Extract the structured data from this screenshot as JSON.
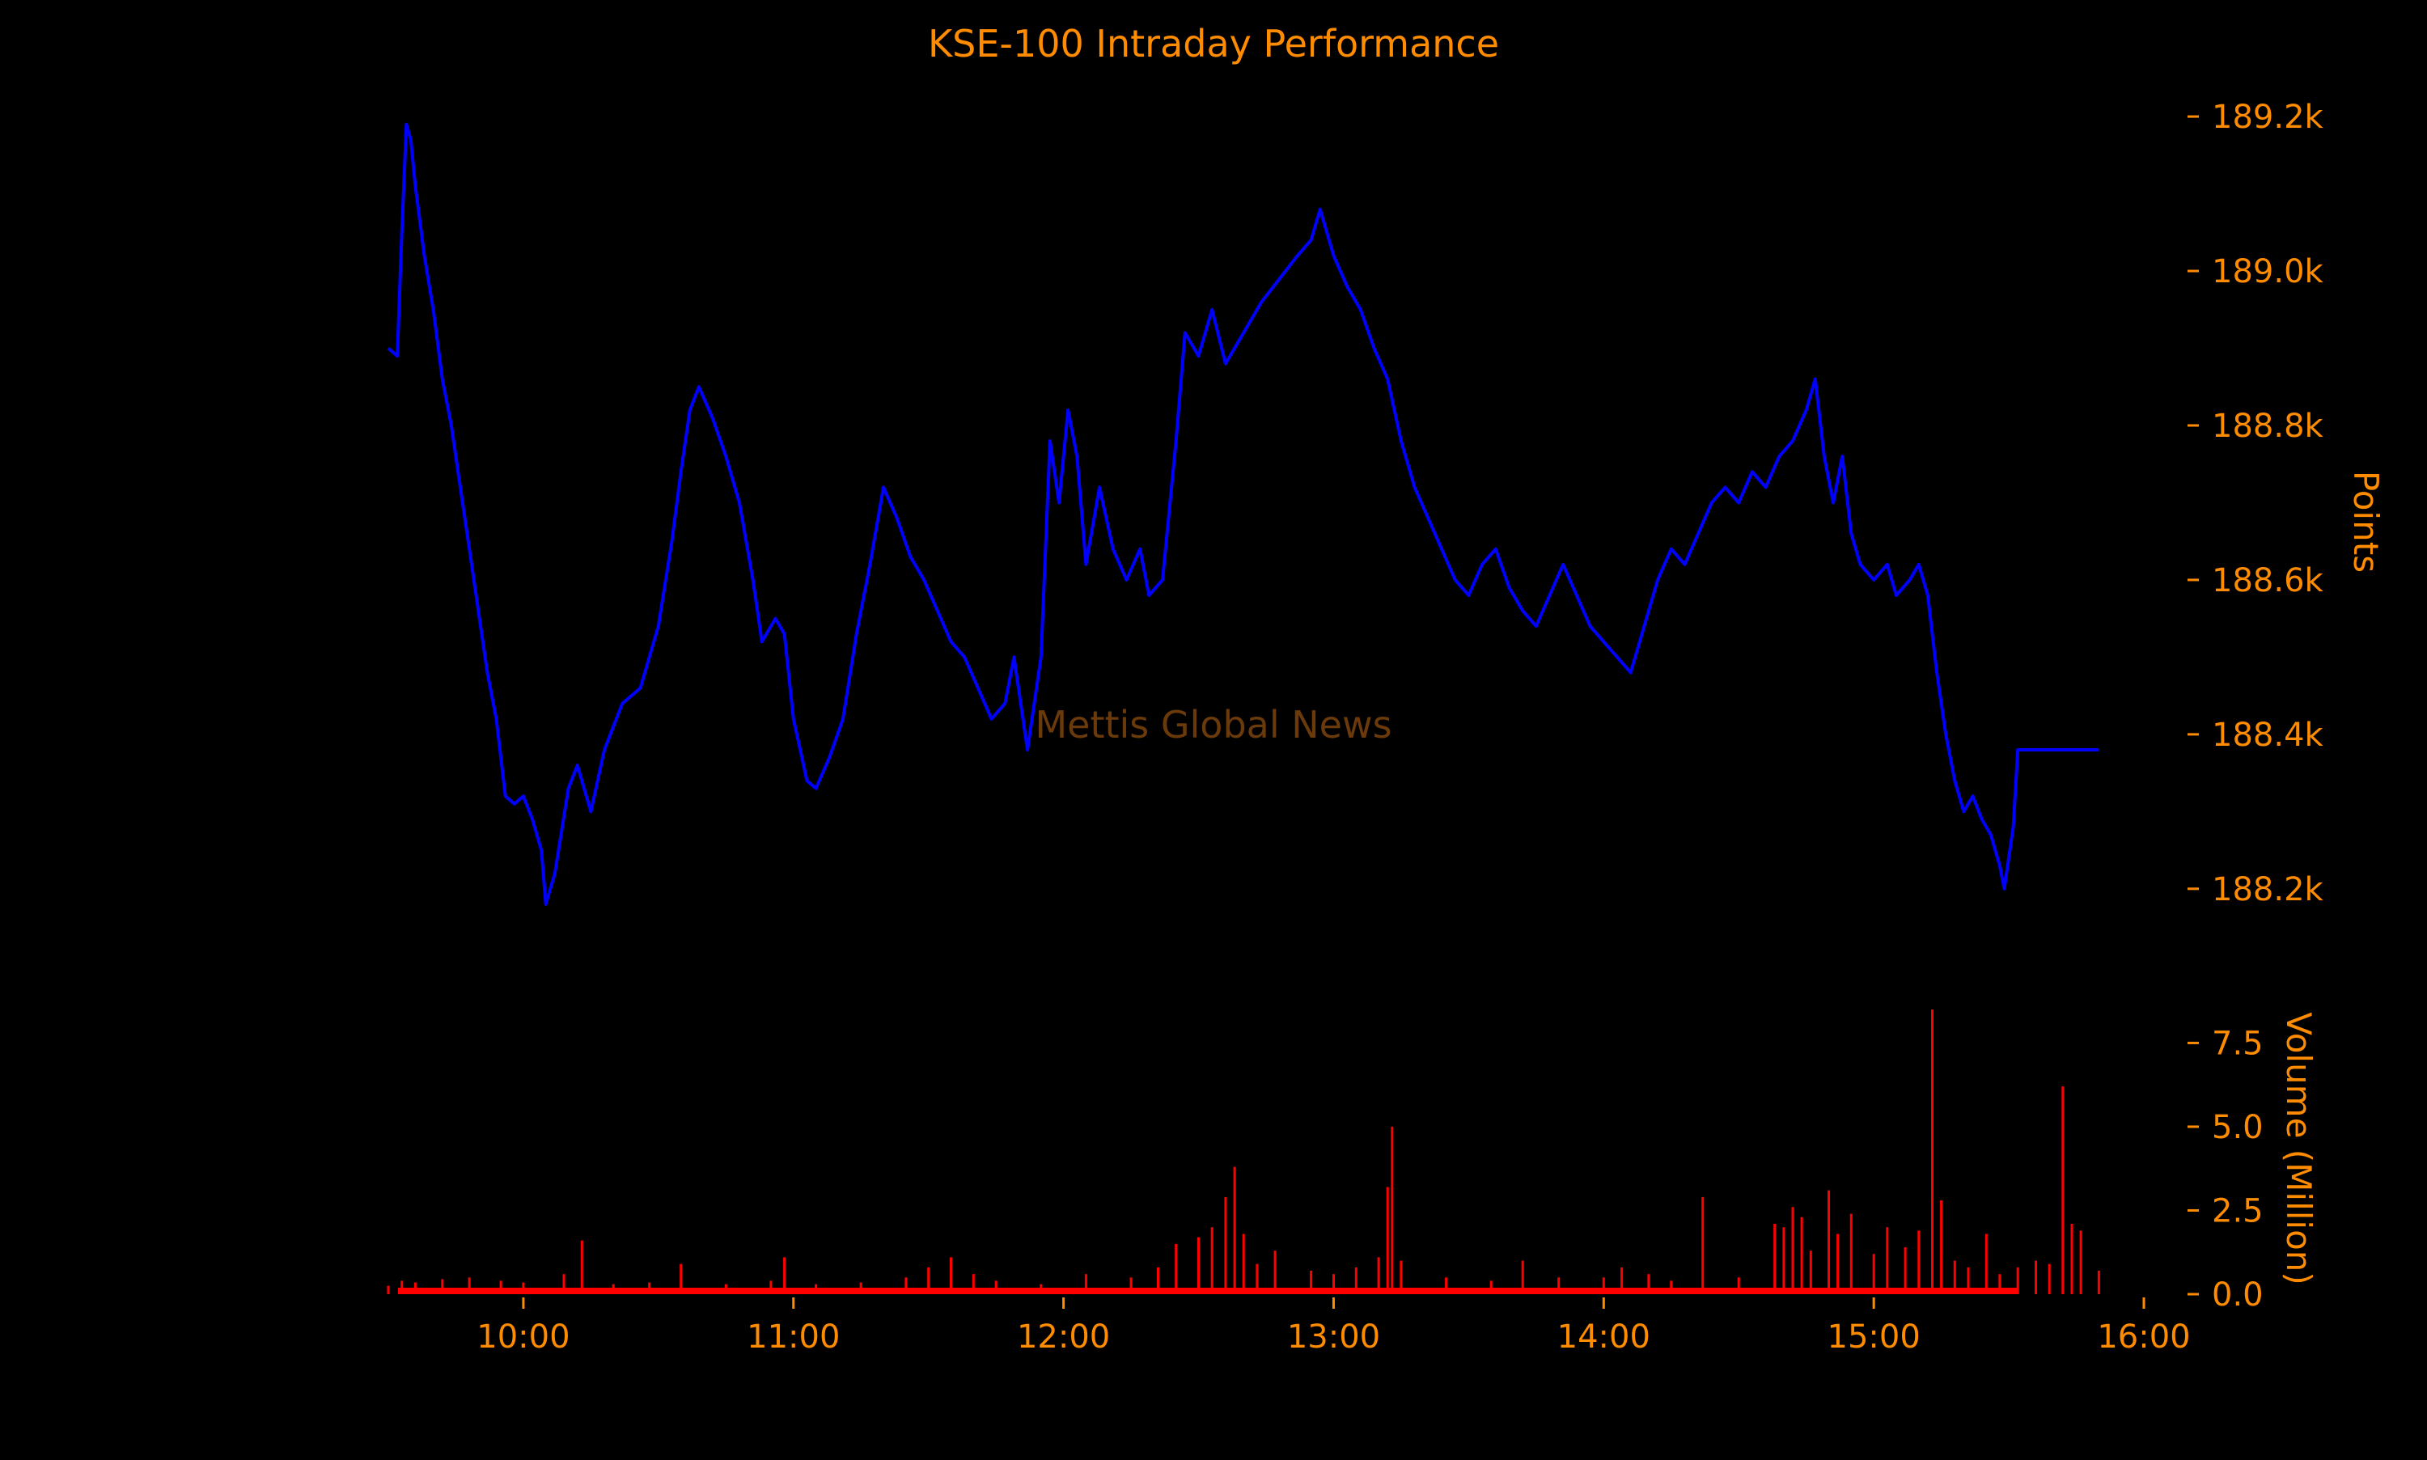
{
  "colors": {
    "background": "#000000",
    "text": "#FF8C00",
    "price_line": "#0000FF",
    "volume_bars": "#FF0000",
    "watermark": "#6B3A0A"
  },
  "chart_data": {
    "type": "line",
    "title": "KSE-100 Intraday Performance",
    "watermark": "Mettis Global News",
    "x_axis": {
      "type": "time",
      "range": [
        "09:30",
        "16:00"
      ],
      "tick_labels": [
        "10:00",
        "11:00",
        "12:00",
        "13:00",
        "14:00",
        "15:00",
        "16:00"
      ]
    },
    "price_panel": {
      "ylabel": "Points",
      "ylim": [
        188160,
        189220
      ],
      "tick_values": [
        188200,
        188400,
        188600,
        188800,
        189000,
        189200
      ],
      "tick_labels": [
        "188.2k",
        "188.4k",
        "188.6k",
        "188.8k",
        "189.0k",
        "189.2k"
      ],
      "series": [
        {
          "color": "#0000FF",
          "points": [
            [
              "09:30",
              188900
            ],
            [
              "09:32",
              188890
            ],
            [
              "09:33",
              189050
            ],
            [
              "09:34",
              189190
            ],
            [
              "09:35",
              189170
            ],
            [
              "09:36",
              189110
            ],
            [
              "09:38",
              189020
            ],
            [
              "09:40",
              188950
            ],
            [
              "09:42",
              188860
            ],
            [
              "09:44",
              188800
            ],
            [
              "09:46",
              188720
            ],
            [
              "09:48",
              188640
            ],
            [
              "09:50",
              188560
            ],
            [
              "09:52",
              188480
            ],
            [
              "09:54",
              188420
            ],
            [
              "09:56",
              188320
            ],
            [
              "09:58",
              188310
            ],
            [
              "10:00",
              188320
            ],
            [
              "10:02",
              188290
            ],
            [
              "10:04",
              188250
            ],
            [
              "10:05",
              188180
            ],
            [
              "10:07",
              188220
            ],
            [
              "10:10",
              188330
            ],
            [
              "10:12",
              188360
            ],
            [
              "10:15",
              188300
            ],
            [
              "10:18",
              188380
            ],
            [
              "10:22",
              188440
            ],
            [
              "10:26",
              188460
            ],
            [
              "10:30",
              188540
            ],
            [
              "10:33",
              188650
            ],
            [
              "10:35",
              188740
            ],
            [
              "10:37",
              188820
            ],
            [
              "10:39",
              188850
            ],
            [
              "10:42",
              188810
            ],
            [
              "10:45",
              188760
            ],
            [
              "10:48",
              188700
            ],
            [
              "10:51",
              188600
            ],
            [
              "10:53",
              188520
            ],
            [
              "10:56",
              188550
            ],
            [
              "10:58",
              188530
            ],
            [
              "11:00",
              188420
            ],
            [
              "11:03",
              188340
            ],
            [
              "11:05",
              188330
            ],
            [
              "11:08",
              188370
            ],
            [
              "11:11",
              188420
            ],
            [
              "11:14",
              188530
            ],
            [
              "11:17",
              188620
            ],
            [
              "11:20",
              188720
            ],
            [
              "11:23",
              188680
            ],
            [
              "11:26",
              188630
            ],
            [
              "11:29",
              188600
            ],
            [
              "11:32",
              188560
            ],
            [
              "11:35",
              188520
            ],
            [
              "11:38",
              188500
            ],
            [
              "11:41",
              188460
            ],
            [
              "11:44",
              188420
            ],
            [
              "11:47",
              188440
            ],
            [
              "11:49",
              188500
            ],
            [
              "11:52",
              188380
            ],
            [
              "11:55",
              188500
            ],
            [
              "11:57",
              188780
            ],
            [
              "11:59",
              188700
            ],
            [
              "12:01",
              188820
            ],
            [
              "12:03",
              188760
            ],
            [
              "12:05",
              188620
            ],
            [
              "12:08",
              188720
            ],
            [
              "12:11",
              188640
            ],
            [
              "12:14",
              188600
            ],
            [
              "12:17",
              188640
            ],
            [
              "12:19",
              188580
            ],
            [
              "12:22",
              188600
            ],
            [
              "12:25",
              188780
            ],
            [
              "12:27",
              188920
            ],
            [
              "12:30",
              188890
            ],
            [
              "12:33",
              188950
            ],
            [
              "12:36",
              188880
            ],
            [
              "12:40",
              188920
            ],
            [
              "12:44",
              188960
            ],
            [
              "12:48",
              188990
            ],
            [
              "12:52",
              189020
            ],
            [
              "12:55",
              189040
            ],
            [
              "12:57",
              189080
            ],
            [
              "13:00",
              189020
            ],
            [
              "13:03",
              188980
            ],
            [
              "13:06",
              188950
            ],
            [
              "13:09",
              188900
            ],
            [
              "13:12",
              188860
            ],
            [
              "13:15",
              188780
            ],
            [
              "13:18",
              188720
            ],
            [
              "13:21",
              188680
            ],
            [
              "13:24",
              188640
            ],
            [
              "13:27",
              188600
            ],
            [
              "13:30",
              188580
            ],
            [
              "13:33",
              188620
            ],
            [
              "13:36",
              188640
            ],
            [
              "13:39",
              188590
            ],
            [
              "13:42",
              188560
            ],
            [
              "13:45",
              188540
            ],
            [
              "13:48",
              188580
            ],
            [
              "13:51",
              188620
            ],
            [
              "13:54",
              188580
            ],
            [
              "13:57",
              188540
            ],
            [
              "14:00",
              188520
            ],
            [
              "14:03",
              188500
            ],
            [
              "14:06",
              188480
            ],
            [
              "14:09",
              188540
            ],
            [
              "14:12",
              188600
            ],
            [
              "14:15",
              188640
            ],
            [
              "14:18",
              188620
            ],
            [
              "14:21",
              188660
            ],
            [
              "14:24",
              188700
            ],
            [
              "14:27",
              188720
            ],
            [
              "14:30",
              188700
            ],
            [
              "14:33",
              188740
            ],
            [
              "14:36",
              188720
            ],
            [
              "14:39",
              188760
            ],
            [
              "14:42",
              188780
            ],
            [
              "14:45",
              188820
            ],
            [
              "14:47",
              188860
            ],
            [
              "14:49",
              188760
            ],
            [
              "14:51",
              188700
            ],
            [
              "14:53",
              188760
            ],
            [
              "14:55",
              188660
            ],
            [
              "14:57",
              188620
            ],
            [
              "15:00",
              188600
            ],
            [
              "15:03",
              188620
            ],
            [
              "15:05",
              188580
            ],
            [
              "15:08",
              188600
            ],
            [
              "15:10",
              188620
            ],
            [
              "15:12",
              188580
            ],
            [
              "15:14",
              188480
            ],
            [
              "15:16",
              188400
            ],
            [
              "15:18",
              188340
            ],
            [
              "15:20",
              188300
            ],
            [
              "15:22",
              188320
            ],
            [
              "15:24",
              188290
            ],
            [
              "15:26",
              188270
            ],
            [
              "15:28",
              188230
            ],
            [
              "15:29",
              188200
            ],
            [
              "15:31",
              188280
            ],
            [
              "15:32",
              188380
            ],
            [
              "15:40",
              188380
            ],
            [
              "15:50",
              188380
            ]
          ]
        }
      ]
    },
    "volume_panel": {
      "ylabel": "Volume (Million)",
      "ylim": [
        0,
        8.5
      ],
      "tick_values": [
        0.0,
        2.5,
        5.0,
        7.5
      ],
      "tick_labels": [
        "0.0",
        "2.5",
        "5.0",
        "7.5"
      ],
      "bars": [
        [
          "09:30",
          0.25
        ],
        [
          "09:33",
          0.4
        ],
        [
          "09:36",
          0.35
        ],
        [
          "09:42",
          0.45
        ],
        [
          "09:48",
          0.5
        ],
        [
          "09:55",
          0.4
        ],
        [
          "10:00",
          0.35
        ],
        [
          "10:09",
          0.6
        ],
        [
          "10:13",
          1.6
        ],
        [
          "10:20",
          0.3
        ],
        [
          "10:28",
          0.35
        ],
        [
          "10:35",
          0.9
        ],
        [
          "10:45",
          0.3
        ],
        [
          "10:55",
          0.4
        ],
        [
          "10:58",
          1.1
        ],
        [
          "11:05",
          0.3
        ],
        [
          "11:15",
          0.35
        ],
        [
          "11:25",
          0.5
        ],
        [
          "11:30",
          0.8
        ],
        [
          "11:35",
          1.1
        ],
        [
          "11:40",
          0.6
        ],
        [
          "11:45",
          0.4
        ],
        [
          "11:55",
          0.3
        ],
        [
          "12:05",
          0.6
        ],
        [
          "12:15",
          0.5
        ],
        [
          "12:21",
          0.8
        ],
        [
          "12:25",
          1.5
        ],
        [
          "12:30",
          1.7
        ],
        [
          "12:33",
          2.0
        ],
        [
          "12:36",
          2.9
        ],
        [
          "12:38",
          3.8
        ],
        [
          "12:40",
          1.8
        ],
        [
          "12:43",
          0.9
        ],
        [
          "12:47",
          1.3
        ],
        [
          "12:55",
          0.7
        ],
        [
          "13:00",
          0.6
        ],
        [
          "13:05",
          0.8
        ],
        [
          "13:10",
          1.1
        ],
        [
          "13:12",
          3.2
        ],
        [
          "13:13",
          5.0
        ],
        [
          "13:15",
          1.0
        ],
        [
          "13:25",
          0.5
        ],
        [
          "13:35",
          0.4
        ],
        [
          "13:42",
          1.0
        ],
        [
          "13:50",
          0.5
        ],
        [
          "14:00",
          0.5
        ],
        [
          "14:04",
          0.8
        ],
        [
          "14:10",
          0.6
        ],
        [
          "14:15",
          0.4
        ],
        [
          "14:22",
          2.9
        ],
        [
          "14:30",
          0.5
        ],
        [
          "14:38",
          2.1
        ],
        [
          "14:40",
          2.0
        ],
        [
          "14:42",
          2.6
        ],
        [
          "14:44",
          2.3
        ],
        [
          "14:46",
          1.3
        ],
        [
          "14:50",
          3.1
        ],
        [
          "14:52",
          1.8
        ],
        [
          "14:55",
          2.4
        ],
        [
          "15:00",
          1.2
        ],
        [
          "15:03",
          2.0
        ],
        [
          "15:07",
          1.4
        ],
        [
          "15:10",
          1.9
        ],
        [
          "15:13",
          8.5
        ],
        [
          "15:15",
          2.8
        ],
        [
          "15:18",
          1.0
        ],
        [
          "15:21",
          0.8
        ],
        [
          "15:25",
          1.8
        ],
        [
          "15:28",
          0.6
        ],
        [
          "15:32",
          0.8
        ],
        [
          "15:36",
          1.0
        ],
        [
          "15:39",
          0.9
        ],
        [
          "15:42",
          6.2
        ],
        [
          "15:44",
          2.1
        ],
        [
          "15:46",
          1.9
        ],
        [
          "15:50",
          0.7
        ]
      ]
    }
  }
}
